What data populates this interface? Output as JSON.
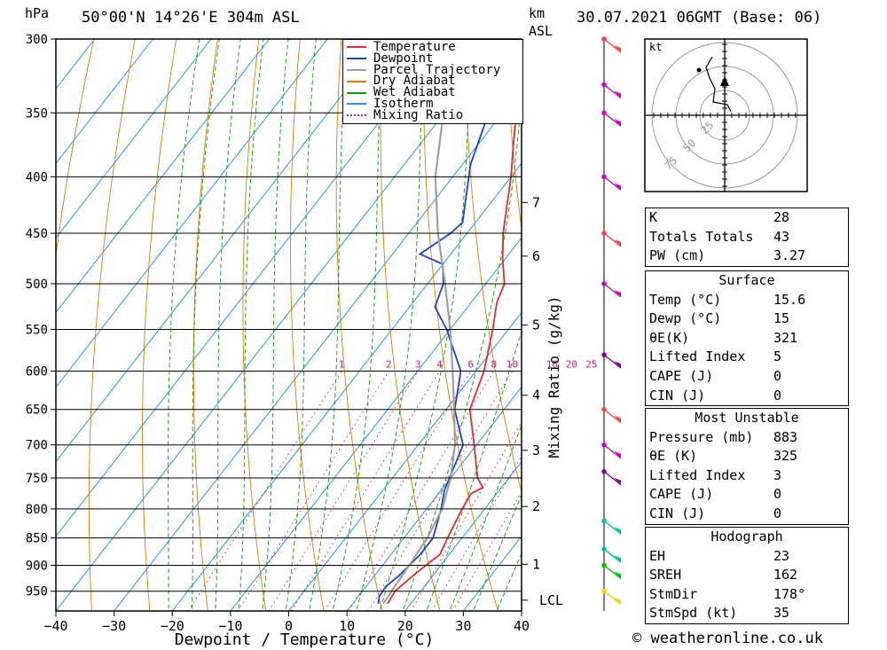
{
  "header": {
    "hpa_label": "hPa",
    "location": "50°00'N 14°26'E 304m ASL",
    "km_label": "km",
    "asl_label": "ASL",
    "datetime": "30.07.2021 06GMT (Base: 06)"
  },
  "legend": [
    {
      "label": "Temperature",
      "color": "#e8282d",
      "style": "solid"
    },
    {
      "label": "Dewpoint",
      "color": "#1f3fd6",
      "style": "solid"
    },
    {
      "label": "Parcel Trajectory",
      "color": "#a0a0a0",
      "style": "solid"
    },
    {
      "label": "Dry Adiabat",
      "color": "#e07b00",
      "style": "solid"
    },
    {
      "label": "Wet Adiabat",
      "color": "#00a000",
      "style": "solid"
    },
    {
      "label": "Isotherm",
      "color": "#1e9be0",
      "style": "solid"
    },
    {
      "label": "Mixing Ratio",
      "color": "#d0148c",
      "style": "dotted"
    }
  ],
  "chart_data": {
    "type": "line",
    "subtype": "skew-T log-p",
    "xlabel": "Dewpoint / Temperature (°C)",
    "x_ticks": [
      "−40",
      "−30",
      "−20",
      "−10",
      "0",
      "10",
      "20",
      "30",
      "40"
    ],
    "x_values": [
      -40,
      -30,
      -20,
      -10,
      0,
      10,
      20,
      30,
      40
    ],
    "xlim": [
      -40,
      40
    ],
    "pressure_ticks": [
      300,
      350,
      400,
      450,
      500,
      550,
      600,
      650,
      700,
      750,
      800,
      850,
      900,
      950
    ],
    "plim": [
      300,
      990
    ],
    "km_ticks": [
      {
        "label": "7",
        "p": 422
      },
      {
        "label": "6",
        "p": 472
      },
      {
        "label": "5",
        "p": 545
      },
      {
        "label": "4",
        "p": 631
      },
      {
        "label": "3",
        "p": 708
      },
      {
        "label": "2",
        "p": 796
      },
      {
        "label": "1",
        "p": 898
      },
      {
        "label": "LCL",
        "p": 968
      }
    ],
    "mixing_ratio_label": "Mixing Ratio (g/kg)",
    "mixing_ratio_values": [
      "1",
      "2",
      "3",
      "4",
      "6",
      "8",
      "10",
      "16",
      "20",
      "25"
    ],
    "series": [
      {
        "name": "Temperature",
        "color": "#e8282d",
        "points": [
          [
            300,
            -33.6
          ],
          [
            350,
            -27.7
          ],
          [
            380,
            -23.0
          ],
          [
            400,
            -20.0
          ],
          [
            450,
            -13.8
          ],
          [
            475,
            -10.4
          ],
          [
            500,
            -6.8
          ],
          [
            520,
            -5.6
          ],
          [
            550,
            -2.7
          ],
          [
            600,
            1.4
          ],
          [
            650,
            4.1
          ],
          [
            700,
            9.6
          ],
          [
            750,
            14.6
          ],
          [
            765,
            16.8
          ],
          [
            775,
            15.6
          ],
          [
            800,
            16.1
          ],
          [
            850,
            17.5
          ],
          [
            880,
            18.4
          ],
          [
            890,
            17.9
          ],
          [
            920,
            16.6
          ],
          [
            950,
            15.6
          ],
          [
            975,
            16.0
          ]
        ]
      },
      {
        "name": "Dewpoint",
        "color": "#1f3fd6",
        "points": [
          [
            300,
            -39.0
          ],
          [
            350,
            -32.4
          ],
          [
            390,
            -28.6
          ],
          [
            440,
            -22.2
          ],
          [
            450,
            -22.8
          ],
          [
            470,
            -25.3
          ],
          [
            480,
            -20.0
          ],
          [
            500,
            -17.3
          ],
          [
            525,
            -15.6
          ],
          [
            550,
            -10.6
          ],
          [
            600,
            -2.6
          ],
          [
            650,
            1.5
          ],
          [
            700,
            7.7
          ],
          [
            770,
            10.6
          ],
          [
            800,
            12.5
          ],
          [
            850,
            15.0
          ],
          [
            880,
            15.0
          ],
          [
            920,
            14.2
          ],
          [
            940,
            13.4
          ],
          [
            960,
            13.6
          ],
          [
            975,
            14.4
          ]
        ]
      },
      {
        "name": "Parcel Trajectory",
        "color": "#a0a0a0",
        "points": [
          [
            320,
            -45.0
          ],
          [
            400,
            -33.0
          ],
          [
            450,
            -25.0
          ],
          [
            500,
            -17.0
          ],
          [
            550,
            -10.0
          ],
          [
            600,
            -4.0
          ],
          [
            650,
            1.4
          ],
          [
            700,
            6.3
          ],
          [
            750,
            10.0
          ],
          [
            800,
            12.7
          ],
          [
            850,
            14.0
          ],
          [
            900,
            14.6
          ],
          [
            950,
            15.0
          ],
          [
            975,
            15.3
          ]
        ]
      }
    ]
  },
  "hodograph": {
    "unit_label": "kt",
    "ring_labels": [
      "25",
      "50",
      "75"
    ]
  },
  "wind_profile": {
    "description_colors": [
      "#ff4040",
      "#d000c0",
      "#8000a0",
      "#00c0a0",
      "#00c000",
      "#ffd000"
    ]
  },
  "indices": {
    "general": [
      {
        "label": "K",
        "value": "28"
      },
      {
        "label": "Totals Totals",
        "value": "43"
      },
      {
        "label": "PW (cm)",
        "value": "3.27"
      }
    ],
    "surface_title": "Surface",
    "surface": [
      {
        "label": "Temp (°C)",
        "value": "15.6"
      },
      {
        "label": "Dewp (°C)",
        "value": "15"
      },
      {
        "label": "θE(K)",
        "value": "321"
      },
      {
        "label": "Lifted Index",
        "value": "5"
      },
      {
        "label": "CAPE (J)",
        "value": "0"
      },
      {
        "label": "CIN (J)",
        "value": "0"
      }
    ],
    "mu_title": "Most Unstable",
    "mu": [
      {
        "label": "Pressure (mb)",
        "value": "883"
      },
      {
        "label": "θE (K)",
        "value": "325"
      },
      {
        "label": "Lifted Index",
        "value": "3"
      },
      {
        "label": "CAPE (J)",
        "value": "0"
      },
      {
        "label": "CIN (J)",
        "value": "0"
      }
    ],
    "hodo_title": "Hodograph",
    "hodo": [
      {
        "label": "EH",
        "value": "23"
      },
      {
        "label": "SREH",
        "value": "162"
      },
      {
        "label": "StmDir",
        "value": "178°"
      },
      {
        "label": "StmSpd (kt)",
        "value": "35"
      }
    ]
  },
  "credit": "© weatheronline.co.uk"
}
